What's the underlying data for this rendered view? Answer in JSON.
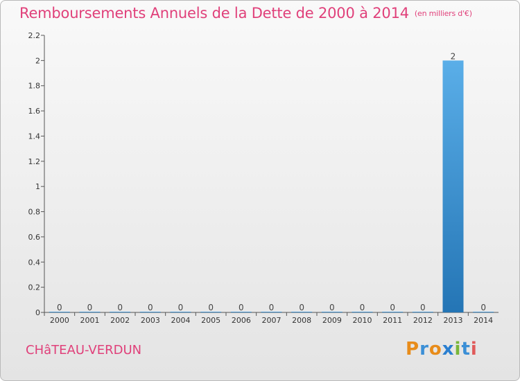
{
  "title": "Remboursements Annuels de la Dette de 2000 à 2014",
  "unit": "(en milliers d'€)",
  "commune": "CHâTEAU-VERDUN",
  "logo": {
    "letters": [
      "P",
      "r",
      "o",
      "x",
      "i",
      "t",
      "i"
    ],
    "colors": [
      "#e88c1a",
      "#3b8fd6",
      "#e88c1a",
      "#2a7fd0",
      "#79b63a",
      "#3b8fd6",
      "#e05a5a"
    ]
  },
  "colors": {
    "title": "#e0407a",
    "bar_top": "#5aaee8",
    "bar_bottom": "#2475b5"
  },
  "chart_data": {
    "type": "bar",
    "title": "Remboursements Annuels de la Dette de 2000 à 2014",
    "ylabel": "en milliers d'€",
    "categories": [
      "2000",
      "2001",
      "2002",
      "2003",
      "2004",
      "2005",
      "2006",
      "2007",
      "2008",
      "2009",
      "2010",
      "2011",
      "2012",
      "2013",
      "2014"
    ],
    "values": [
      0,
      0,
      0,
      0,
      0,
      0,
      0,
      0,
      0,
      0,
      0,
      0,
      0,
      2,
      0
    ],
    "data_labels": [
      "0",
      "0",
      "0",
      "0",
      "0",
      "0",
      "0",
      "0",
      "0",
      "0",
      "0",
      "0",
      "0",
      "2",
      "0"
    ],
    "ylim": [
      0,
      2.2
    ],
    "yticks": [
      0,
      0.2,
      0.4,
      0.6,
      0.8,
      1,
      1.2,
      1.4,
      1.6,
      1.8,
      2,
      2.2
    ],
    "ytick_labels": [
      "0",
      "0.2",
      "0.4",
      "0.6",
      "0.8",
      "1",
      "1.2",
      "1.4",
      "1.6",
      "1.8",
      "2",
      "2.2"
    ]
  }
}
